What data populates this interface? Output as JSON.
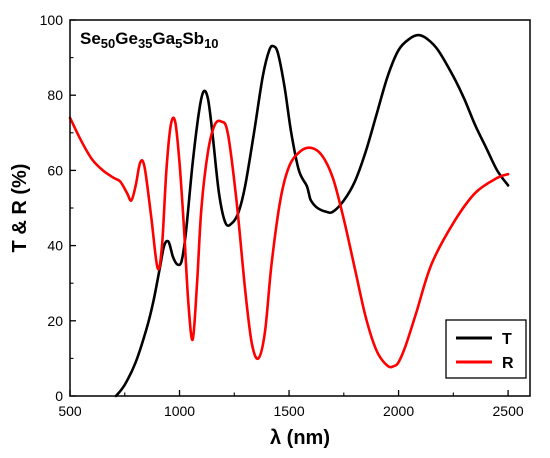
{
  "chart_data": {
    "type": "line",
    "xlabel": "λ (nm)",
    "ylabel": "T & R (%)",
    "xlim": [
      500,
      2600
    ],
    "ylim": [
      0,
      100
    ],
    "x_ticks": [
      500,
      1000,
      1500,
      2000,
      2500
    ],
    "y_ticks": [
      0,
      20,
      40,
      60,
      80,
      100
    ],
    "x_tick_labels": [
      "500",
      "1000",
      "1500",
      "2000",
      "2500"
    ],
    "y_tick_labels": [
      "0",
      "20",
      "40",
      "60",
      "80",
      "100"
    ],
    "annotation": {
      "parts": [
        {
          "text": "Se",
          "sub": false
        },
        {
          "text": "50",
          "sub": true
        },
        {
          "text": "Ge",
          "sub": false
        },
        {
          "text": "35",
          "sub": true
        },
        {
          "text": "Ga",
          "sub": false
        },
        {
          "text": "5",
          "sub": true
        },
        {
          "text": "Sb",
          "sub": false
        },
        {
          "text": "10",
          "sub": true
        }
      ]
    },
    "legend_position": "bottom-right",
    "series": [
      {
        "name": "T",
        "color": "#000000",
        "x": [
          710,
          750,
          800,
          850,
          880,
          910,
          930,
          950,
          970,
          990,
          1010,
          1030,
          1060,
          1090,
          1110,
          1130,
          1150,
          1180,
          1210,
          1240,
          1270,
          1300,
          1340,
          1380,
          1410,
          1430,
          1450,
          1480,
          1510,
          1545,
          1580,
          1590,
          1600,
          1630,
          1670,
          1700,
          1750,
          1800,
          1850,
          1900,
          1950,
          2000,
          2050,
          2090,
          2130,
          2180,
          2250,
          2300,
          2350,
          2400,
          2450,
          2500
        ],
        "y": [
          0,
          3,
          9,
          18,
          25,
          34,
          40,
          41,
          37,
          35,
          36,
          44,
          62,
          76,
          81,
          79,
          70,
          54,
          46,
          46,
          49,
          56,
          70,
          85,
          92,
          93,
          91,
          82,
          70,
          60,
          56,
          54,
          52,
          50,
          49,
          49,
          52,
          57,
          65,
          75,
          85,
          92,
          95,
          96,
          95,
          92,
          85,
          79,
          72,
          66,
          60,
          56
        ]
      },
      {
        "name": "R",
        "color": "#ff0000",
        "x": [
          500,
          550,
          600,
          650,
          700,
          730,
          760,
          780,
          800,
          820,
          840,
          870,
          900,
          920,
          940,
          960,
          980,
          1000,
          1020,
          1040,
          1060,
          1080,
          1100,
          1130,
          1160,
          1190,
          1220,
          1260,
          1300,
          1330,
          1360,
          1390,
          1420,
          1460,
          1500,
          1550,
          1600,
          1650,
          1700,
          1750,
          1800,
          1850,
          1900,
          1950,
          1980,
          2000,
          2030,
          2080,
          2150,
          2250,
          2350,
          2450,
          2500
        ],
        "y": [
          74,
          68,
          63,
          60,
          58,
          57,
          54,
          52,
          56,
          62,
          61,
          48,
          34,
          40,
          60,
          72,
          73,
          62,
          45,
          25,
          15,
          30,
          50,
          65,
          72,
          73,
          70,
          52,
          28,
          14,
          10,
          17,
          35,
          52,
          61,
          65,
          66,
          64,
          58,
          47,
          34,
          21,
          12,
          8,
          8,
          9,
          13,
          22,
          35,
          46,
          54,
          58,
          59
        ]
      }
    ]
  }
}
